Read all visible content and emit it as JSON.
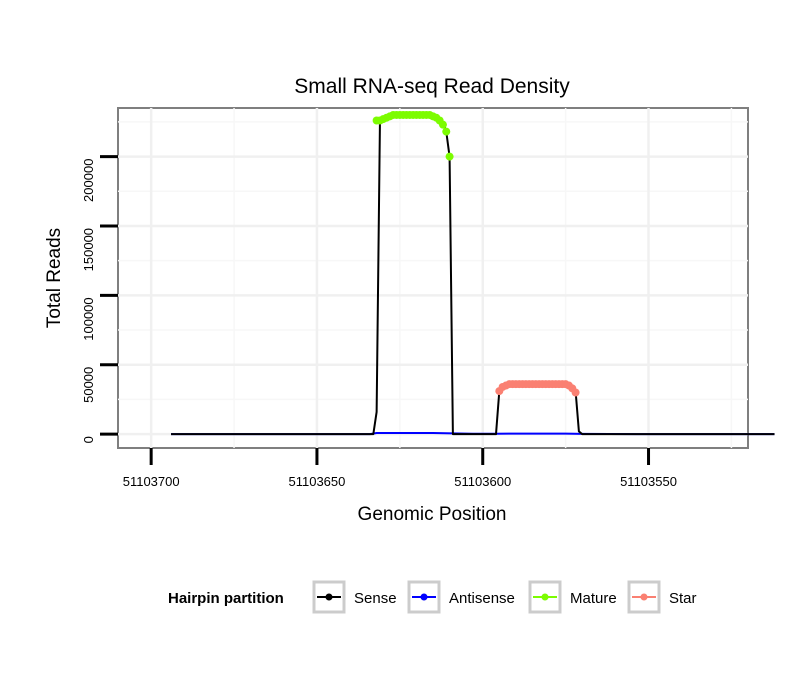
{
  "chart_data": {
    "type": "line",
    "title": "Small RNA-seq Read Density",
    "xlabel": "Genomic Position",
    "ylabel": "Total Reads",
    "x_reversed": true,
    "xlim": [
      51103710,
      51103520
    ],
    "ylim": [
      -10000,
      235000
    ],
    "x_ticks": [
      51103700,
      51103650,
      51103600,
      51103550
    ],
    "x_tick_labels": [
      "51103700",
      "51103650",
      "51103600",
      "51103550"
    ],
    "y_ticks": [
      0,
      50000,
      100000,
      150000,
      200000
    ],
    "y_tick_labels": [
      "0",
      "50000",
      "100000",
      "150000",
      "200000"
    ],
    "grid": true,
    "legend_title": "Hairpin partition",
    "legend_position": "bottom",
    "series": [
      {
        "name": "Sense",
        "color": "#000000",
        "kind": "line",
        "x": [
          51103694,
          51103633,
          51103632,
          51103631,
          51103630,
          51103625,
          51103620,
          51103615,
          51103612,
          51103611,
          51103610,
          51103609,
          51103608,
          51103603,
          51103596,
          51103595,
          51103594,
          51103593,
          51103590,
          51103585,
          51103580,
          51103575,
          51103573,
          51103572,
          51103571,
          51103570,
          51103560,
          51103550,
          51103530,
          51103512
        ],
        "y": [
          0,
          0,
          16000,
          225000,
          226000,
          230000,
          230000,
          230000,
          225000,
          218000,
          200000,
          0,
          0,
          0,
          0,
          31000,
          34000,
          36000,
          36000,
          36000,
          36000,
          36000,
          34000,
          31000,
          2000,
          0,
          0,
          0,
          0,
          0
        ]
      },
      {
        "name": "Antisense",
        "color": "#0000ff",
        "kind": "line",
        "x": [
          51103694,
          51103634,
          51103632,
          51103615,
          51103609,
          51103603,
          51103596,
          51103590,
          51103575,
          51103570,
          51103550,
          51103512
        ],
        "y": [
          0,
          0,
          800,
          800,
          500,
          300,
          300,
          400,
          400,
          200,
          0,
          0
        ]
      },
      {
        "name": "Mature",
        "color": "#7cfc00",
        "kind": "points",
        "x": [
          51103632,
          51103631,
          51103630,
          51103629,
          51103628,
          51103627,
          51103626,
          51103625,
          51103624,
          51103623,
          51103622,
          51103621,
          51103620,
          51103619,
          51103618,
          51103617,
          51103616,
          51103615,
          51103614,
          51103613,
          51103612,
          51103611,
          51103610
        ],
        "y": [
          226000,
          226000,
          227000,
          228000,
          229000,
          230000,
          230000,
          230000,
          230000,
          230000,
          230000,
          230000,
          230000,
          230000,
          230000,
          230000,
          230000,
          229000,
          228000,
          226000,
          223000,
          218000,
          200000
        ]
      },
      {
        "name": "Star",
        "color": "#fa8072",
        "kind": "points",
        "x": [
          51103595,
          51103594,
          51103593,
          51103592,
          51103591,
          51103590,
          51103589,
          51103588,
          51103587,
          51103586,
          51103585,
          51103584,
          51103583,
          51103582,
          51103581,
          51103580,
          51103579,
          51103578,
          51103577,
          51103576,
          51103575,
          51103574,
          51103573,
          51103572
        ],
        "y": [
          31000,
          34000,
          35000,
          36000,
          36000,
          36000,
          36000,
          36000,
          36000,
          36000,
          36000,
          36000,
          36000,
          36000,
          36000,
          36000,
          36000,
          36000,
          36000,
          36000,
          36000,
          35000,
          33000,
          30000
        ]
      }
    ]
  }
}
